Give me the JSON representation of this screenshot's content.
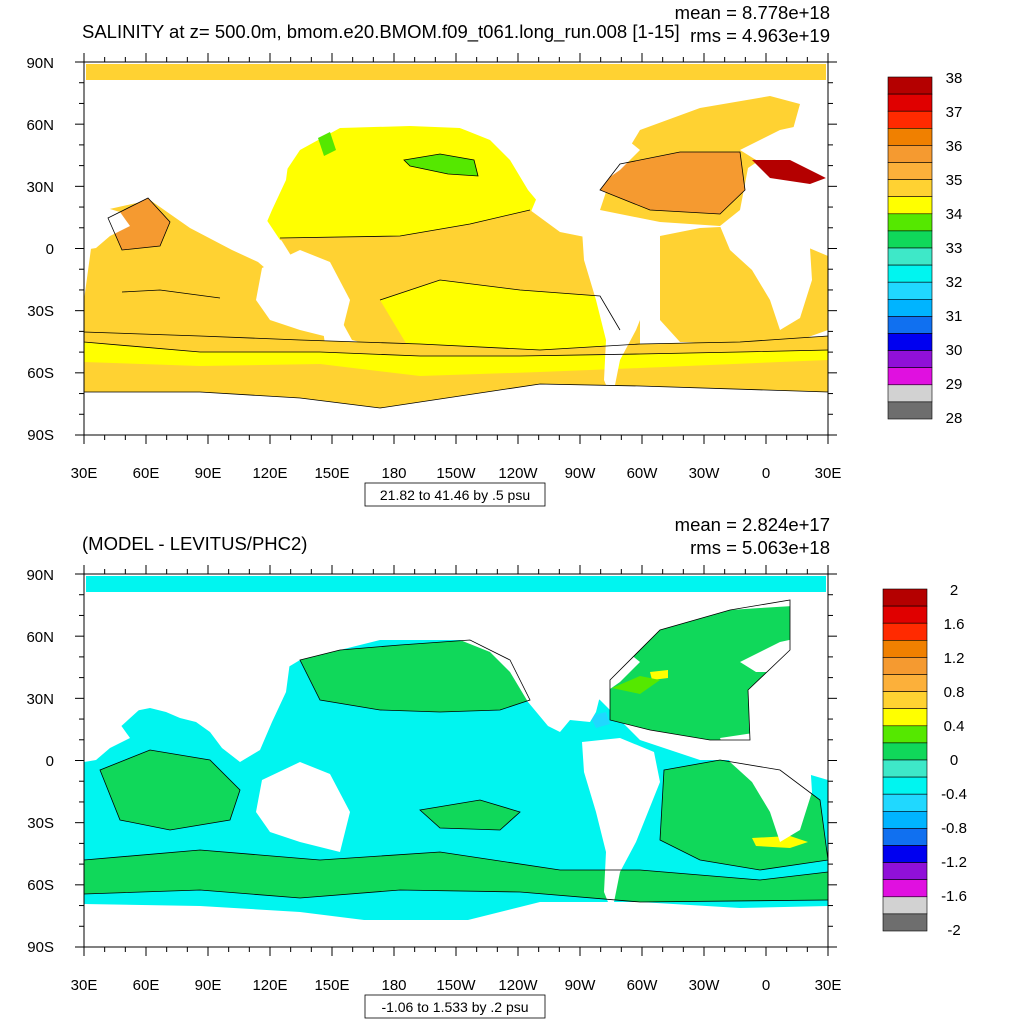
{
  "panels": [
    {
      "title": "SALINITY at z= 500.0m, bmom.e20.BMOM.f09_t061.long_run.008 [1-15]",
      "stats": {
        "mean": "mean = 8.778e+18",
        "rms": "rms = 4.963e+19"
      },
      "range_label": "21.82 to 41.46 by .5 psu",
      "lat_labels": [
        "90N",
        "60N",
        "30N",
        "0",
        "30S",
        "60S",
        "90S"
      ],
      "lon_labels": [
        "30E",
        "60E",
        "90E",
        "120E",
        "150E",
        "180",
        "150W",
        "120W",
        "90W",
        "60W",
        "30W",
        "0",
        "30E"
      ],
      "colorbar": {
        "labels": [
          "38",
          "37",
          "36",
          "35",
          "34",
          "33",
          "32",
          "31",
          "30",
          "29",
          "28"
        ],
        "colors": [
          "#b40000",
          "#e00000",
          "#ff2a00",
          "#f08000",
          "#f59a30",
          "#fcb03a",
          "#ffd232",
          "#ffff00",
          "#55e800",
          "#10d85a",
          "#3ee8c8",
          "#00f5f0",
          "#20d8ff",
          "#00b4ff",
          "#1070f0",
          "#0000f0",
          "#9010d8",
          "#e010e0",
          "#d2d2d2",
          "#6e6e6e"
        ]
      },
      "legend": {
        "colors": [
          "#ffd232",
          "#ffff00",
          "#f59a30",
          "#55e800",
          "#b40000"
        ]
      }
    },
    {
      "title": "(MODEL - LEVITUS/PHC2)",
      "stats": {
        "mean": "mean = 2.824e+17",
        "rms": "rms = 5.063e+18"
      },
      "range_label": "-1.06 to 1.533 by .2 psu",
      "lat_labels": [
        "90N",
        "60N",
        "30N",
        "0",
        "30S",
        "60S",
        "90S"
      ],
      "lon_labels": [
        "30E",
        "60E",
        "90E",
        "120E",
        "150E",
        "180",
        "150W",
        "120W",
        "90W",
        "60W",
        "30W",
        "0",
        "30E"
      ],
      "colorbar": {
        "labels": [
          "2",
          "1.6",
          "1.2",
          "0.8",
          "0.4",
          "0",
          "-0.4",
          "-0.8",
          "-1.2",
          "-1.6",
          "-2"
        ],
        "colors": [
          "#b40000",
          "#e00000",
          "#ff2a00",
          "#f08000",
          "#f59a30",
          "#fcb03a",
          "#ffd232",
          "#ffff00",
          "#55e800",
          "#10d85a",
          "#3ee8c8",
          "#00f5f0",
          "#20d8ff",
          "#00b4ff",
          "#1070f0",
          "#0000f0",
          "#9010d8",
          "#e010e0",
          "#d2d2d2",
          "#6e6e6e"
        ]
      },
      "legend": {
        "colors": [
          "#00f5f0",
          "#10d85a",
          "#55e800",
          "#20d8ff",
          "#ffff00"
        ]
      }
    }
  ]
}
